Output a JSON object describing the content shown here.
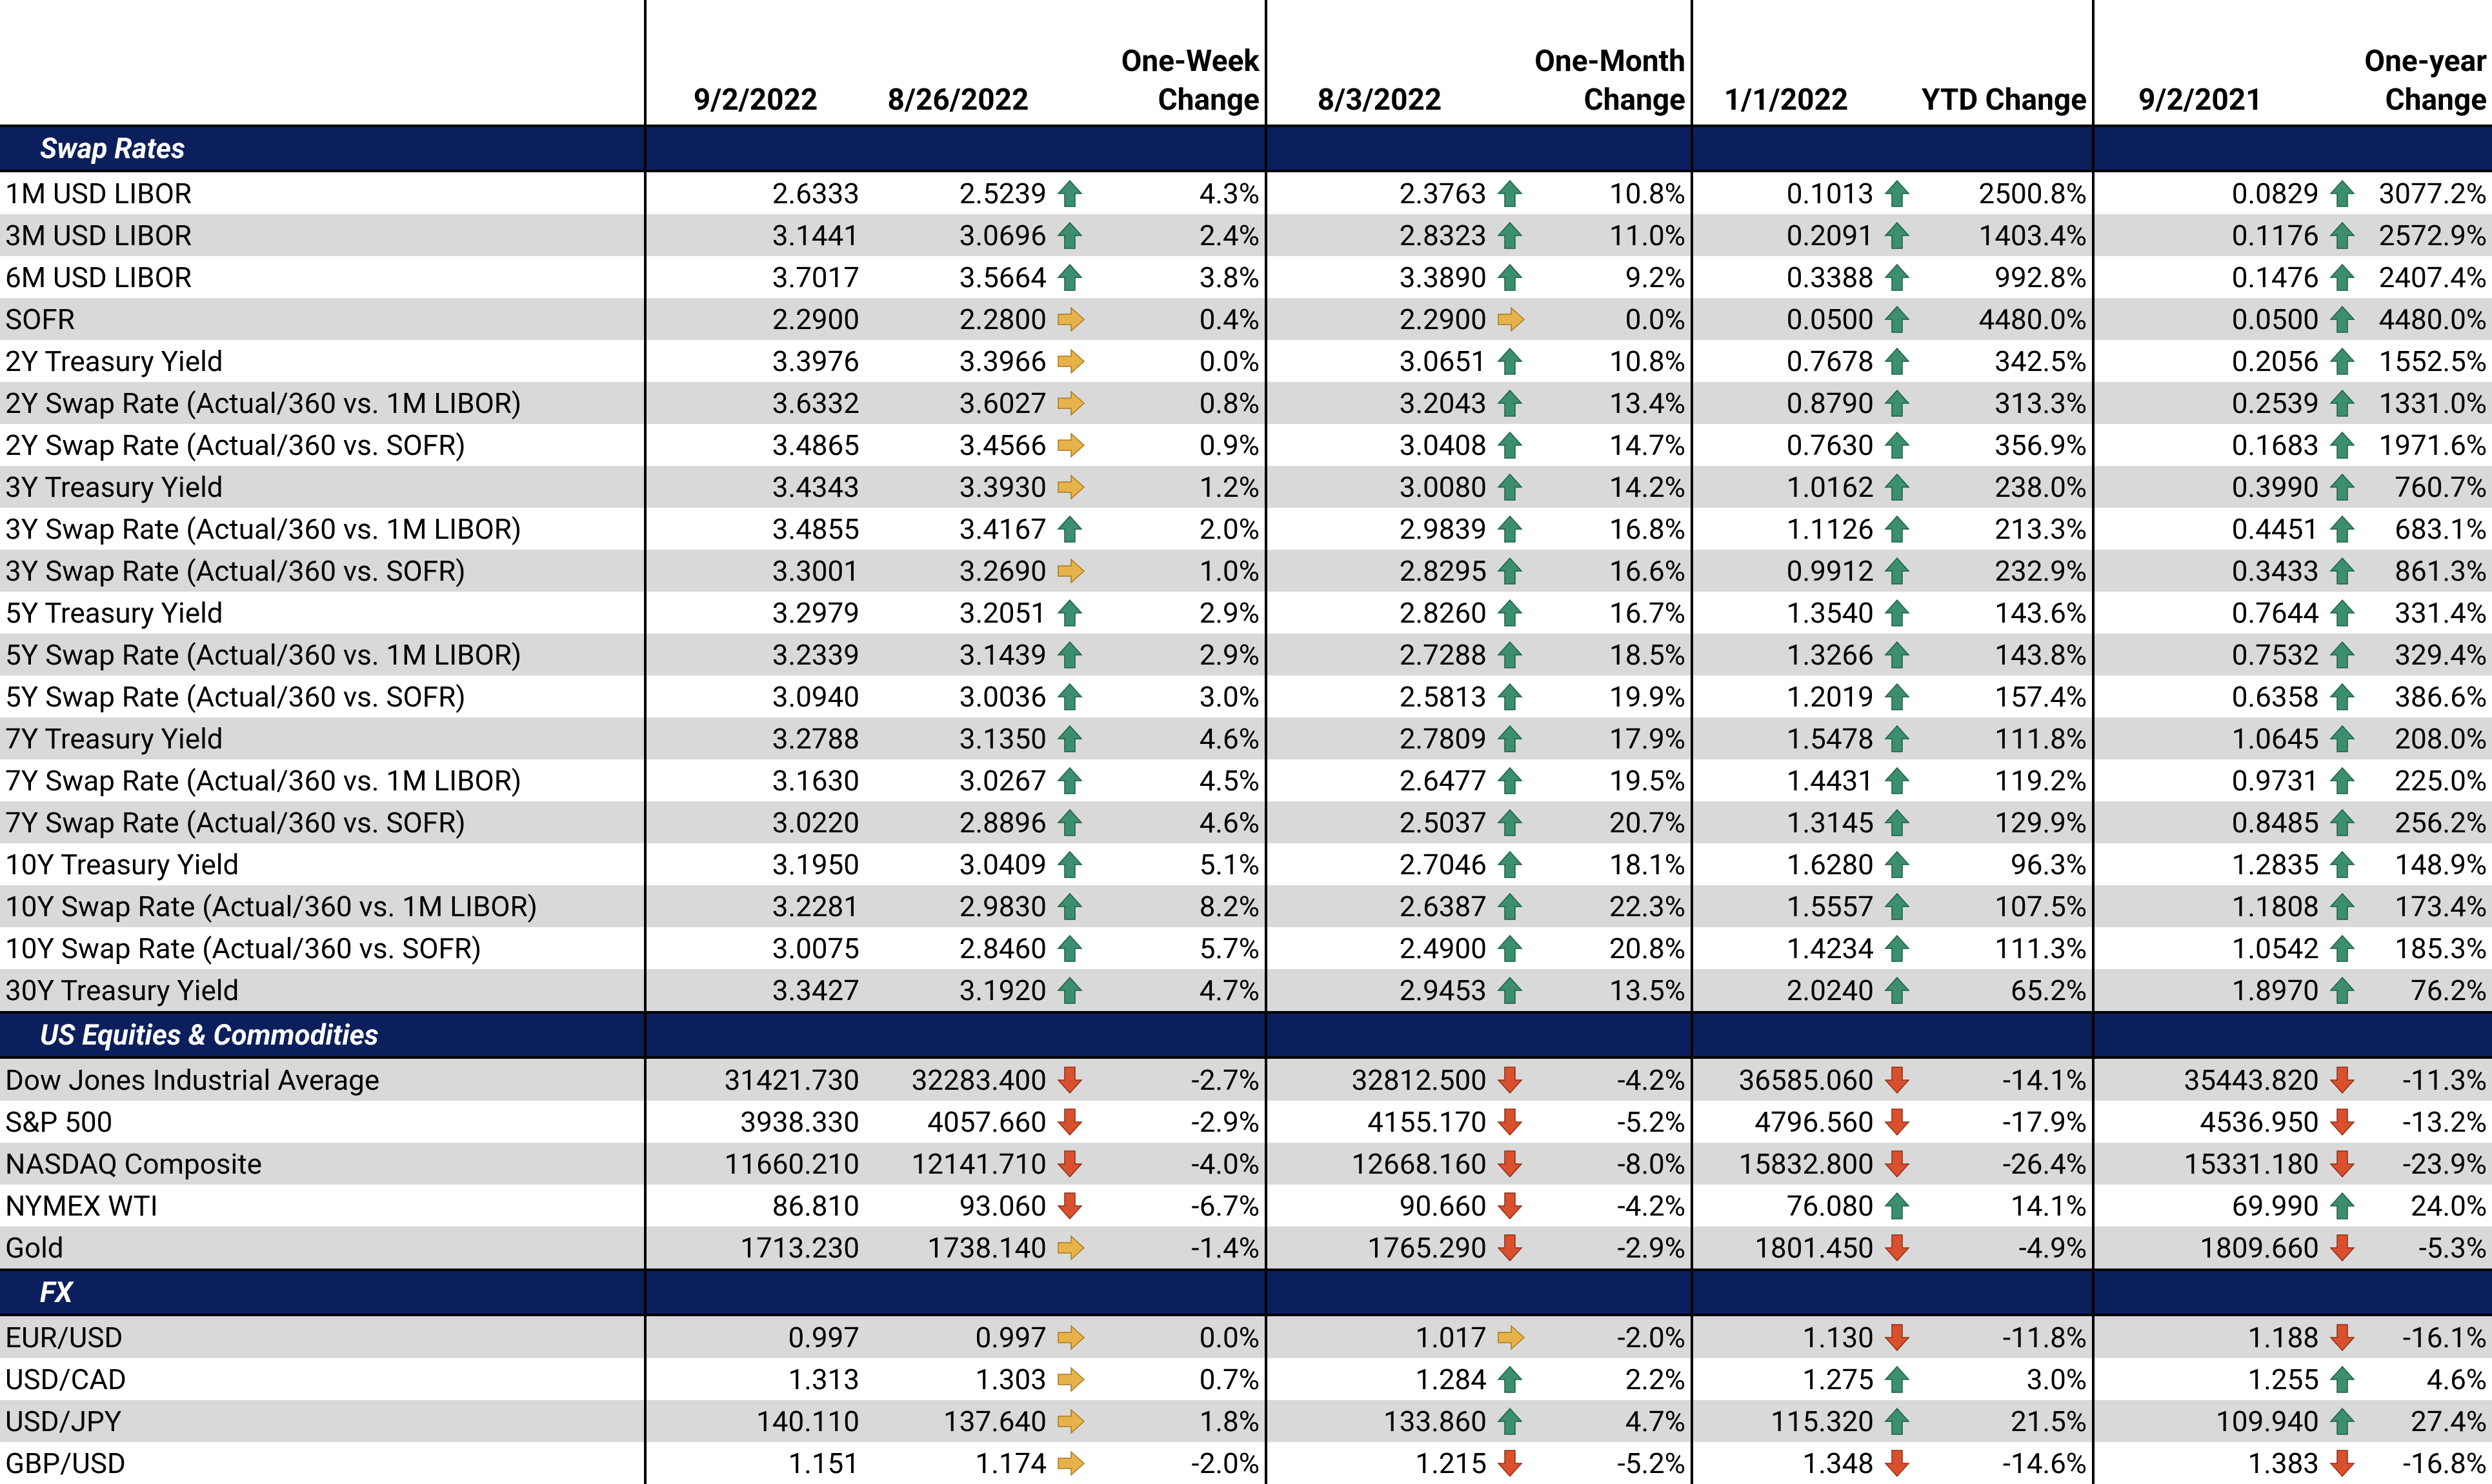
{
  "columns": {
    "c1": "9/2/2022",
    "c2": "8/26/2022",
    "c3": [
      "One-Week",
      "Change"
    ],
    "c4": "8/3/2022",
    "c5": [
      "One-Month",
      "Change"
    ],
    "c6": "1/1/2022",
    "c7": "YTD Change",
    "c8": "9/2/2021",
    "c9": [
      "One-year",
      "Change"
    ]
  },
  "colors": {
    "section_bg": "#0b1f5c",
    "shade": "#d9d9d9",
    "up": "#3b8f6e",
    "flat": "#e8b24a",
    "down": "#d9502e"
  },
  "sections": [
    {
      "title": "Swap Rates",
      "rows": [
        [
          "1M USD LIBOR",
          "2.6333",
          "2.5239",
          "up",
          "4.3%",
          "2.3763",
          "up",
          "10.8%",
          "0.1013",
          "up",
          "2500.8%",
          "0.0829",
          "up",
          "3077.2%"
        ],
        [
          "3M USD LIBOR",
          "3.1441",
          "3.0696",
          "up",
          "2.4%",
          "2.8323",
          "up",
          "11.0%",
          "0.2091",
          "up",
          "1403.4%",
          "0.1176",
          "up",
          "2572.9%"
        ],
        [
          "6M USD LIBOR",
          "3.7017",
          "3.5664",
          "up",
          "3.8%",
          "3.3890",
          "up",
          "9.2%",
          "0.3388",
          "up",
          "992.8%",
          "0.1476",
          "up",
          "2407.4%"
        ],
        [
          "SOFR",
          "2.2900",
          "2.2800",
          "flat",
          "0.4%",
          "2.2900",
          "flat",
          "0.0%",
          "0.0500",
          "up",
          "4480.0%",
          "0.0500",
          "up",
          "4480.0%"
        ],
        [
          "2Y Treasury Yield",
          "3.3976",
          "3.3966",
          "flat",
          "0.0%",
          "3.0651",
          "up",
          "10.8%",
          "0.7678",
          "up",
          "342.5%",
          "0.2056",
          "up",
          "1552.5%"
        ],
        [
          "2Y Swap Rate (Actual/360 vs. 1M LIBOR)",
          "3.6332",
          "3.6027",
          "flat",
          "0.8%",
          "3.2043",
          "up",
          "13.4%",
          "0.8790",
          "up",
          "313.3%",
          "0.2539",
          "up",
          "1331.0%"
        ],
        [
          "2Y Swap Rate (Actual/360 vs. SOFR)",
          "3.4865",
          "3.4566",
          "flat",
          "0.9%",
          "3.0408",
          "up",
          "14.7%",
          "0.7630",
          "up",
          "356.9%",
          "0.1683",
          "up",
          "1971.6%"
        ],
        [
          "3Y Treasury Yield",
          "3.4343",
          "3.3930",
          "flat",
          "1.2%",
          "3.0080",
          "up",
          "14.2%",
          "1.0162",
          "up",
          "238.0%",
          "0.3990",
          "up",
          "760.7%"
        ],
        [
          "3Y Swap Rate (Actual/360 vs. 1M LIBOR)",
          "3.4855",
          "3.4167",
          "up",
          "2.0%",
          "2.9839",
          "up",
          "16.8%",
          "1.1126",
          "up",
          "213.3%",
          "0.4451",
          "up",
          "683.1%"
        ],
        [
          "3Y Swap Rate (Actual/360 vs. SOFR)",
          "3.3001",
          "3.2690",
          "flat",
          "1.0%",
          "2.8295",
          "up",
          "16.6%",
          "0.9912",
          "up",
          "232.9%",
          "0.3433",
          "up",
          "861.3%"
        ],
        [
          "5Y Treasury Yield",
          "3.2979",
          "3.2051",
          "up",
          "2.9%",
          "2.8260",
          "up",
          "16.7%",
          "1.3540",
          "up",
          "143.6%",
          "0.7644",
          "up",
          "331.4%"
        ],
        [
          "5Y Swap Rate (Actual/360 vs. 1M LIBOR)",
          "3.2339",
          "3.1439",
          "up",
          "2.9%",
          "2.7288",
          "up",
          "18.5%",
          "1.3266",
          "up",
          "143.8%",
          "0.7532",
          "up",
          "329.4%"
        ],
        [
          "5Y Swap Rate (Actual/360 vs. SOFR)",
          "3.0940",
          "3.0036",
          "up",
          "3.0%",
          "2.5813",
          "up",
          "19.9%",
          "1.2019",
          "up",
          "157.4%",
          "0.6358",
          "up",
          "386.6%"
        ],
        [
          "7Y Treasury Yield",
          "3.2788",
          "3.1350",
          "up",
          "4.6%",
          "2.7809",
          "up",
          "17.9%",
          "1.5478",
          "up",
          "111.8%",
          "1.0645",
          "up",
          "208.0%"
        ],
        [
          "7Y Swap Rate (Actual/360 vs. 1M LIBOR)",
          "3.1630",
          "3.0267",
          "up",
          "4.5%",
          "2.6477",
          "up",
          "19.5%",
          "1.4431",
          "up",
          "119.2%",
          "0.9731",
          "up",
          "225.0%"
        ],
        [
          "7Y Swap Rate (Actual/360 vs. SOFR)",
          "3.0220",
          "2.8896",
          "up",
          "4.6%",
          "2.5037",
          "up",
          "20.7%",
          "1.3145",
          "up",
          "129.9%",
          "0.8485",
          "up",
          "256.2%"
        ],
        [
          "10Y Treasury Yield",
          "3.1950",
          "3.0409",
          "up",
          "5.1%",
          "2.7046",
          "up",
          "18.1%",
          "1.6280",
          "up",
          "96.3%",
          "1.2835",
          "up",
          "148.9%"
        ],
        [
          "10Y Swap Rate (Actual/360 vs. 1M LIBOR)",
          "3.2281",
          "2.9830",
          "up",
          "8.2%",
          "2.6387",
          "up",
          "22.3%",
          "1.5557",
          "up",
          "107.5%",
          "1.1808",
          "up",
          "173.4%"
        ],
        [
          "10Y Swap Rate (Actual/360 vs. SOFR)",
          "3.0075",
          "2.8460",
          "up",
          "5.7%",
          "2.4900",
          "up",
          "20.8%",
          "1.4234",
          "up",
          "111.3%",
          "1.0542",
          "up",
          "185.3%"
        ],
        [
          "30Y Treasury Yield",
          "3.3427",
          "3.1920",
          "up",
          "4.7%",
          "2.9453",
          "up",
          "13.5%",
          "2.0240",
          "up",
          "65.2%",
          "1.8970",
          "up",
          "76.2%"
        ]
      ]
    },
    {
      "title": "US Equities & Commodities",
      "rows": [
        [
          "Dow Jones Industrial Average",
          "31421.730",
          "32283.400",
          "down",
          "-2.7%",
          "32812.500",
          "down",
          "-4.2%",
          "36585.060",
          "down",
          "-14.1%",
          "35443.820",
          "down",
          "-11.3%"
        ],
        [
          "S&P 500",
          "3938.330",
          "4057.660",
          "down",
          "-2.9%",
          "4155.170",
          "down",
          "-5.2%",
          "4796.560",
          "down",
          "-17.9%",
          "4536.950",
          "down",
          "-13.2%"
        ],
        [
          "NASDAQ Composite",
          "11660.210",
          "12141.710",
          "down",
          "-4.0%",
          "12668.160",
          "down",
          "-8.0%",
          "15832.800",
          "down",
          "-26.4%",
          "15331.180",
          "down",
          "-23.9%"
        ],
        [
          "NYMEX WTI",
          "86.810",
          "93.060",
          "down",
          "-6.7%",
          "90.660",
          "down",
          "-4.2%",
          "76.080",
          "up",
          "14.1%",
          "69.990",
          "up",
          "24.0%"
        ],
        [
          "Gold",
          "1713.230",
          "1738.140",
          "flat",
          "-1.4%",
          "1765.290",
          "down",
          "-2.9%",
          "1801.450",
          "down",
          "-4.9%",
          "1809.660",
          "down",
          "-5.3%"
        ]
      ]
    },
    {
      "title": "FX",
      "rows": [
        [
          "EUR/USD",
          "0.997",
          "0.997",
          "flat",
          "0.0%",
          "1.017",
          "flat",
          "-2.0%",
          "1.130",
          "down",
          "-11.8%",
          "1.188",
          "down",
          "-16.1%"
        ],
        [
          "USD/CAD",
          "1.313",
          "1.303",
          "flat",
          "0.7%",
          "1.284",
          "up",
          "2.2%",
          "1.275",
          "up",
          "3.0%",
          "1.255",
          "up",
          "4.6%"
        ],
        [
          "USD/JPY",
          "140.110",
          "137.640",
          "flat",
          "1.8%",
          "133.860",
          "up",
          "4.7%",
          "115.320",
          "up",
          "21.5%",
          "109.940",
          "up",
          "27.4%"
        ],
        [
          "GBP/USD",
          "1.151",
          "1.174",
          "flat",
          "-2.0%",
          "1.215",
          "down",
          "-5.2%",
          "1.348",
          "down",
          "-14.6%",
          "1.383",
          "down",
          "-16.8%"
        ]
      ]
    }
  ]
}
